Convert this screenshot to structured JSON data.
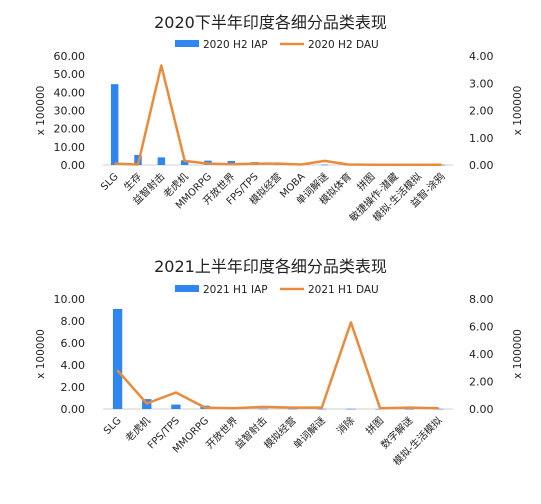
{
  "chart_data": [
    {
      "type": "bar",
      "title": "2020下半年印度各细分品类表现",
      "categories": [
        "SLG",
        "生存",
        "益智射击",
        "老虎机",
        "MMORPG",
        "开放世界",
        "FPS/TPS",
        "模拟经营",
        "MOBA",
        "单词解谜",
        "模拟体育",
        "拼图",
        "敏捷操作-潜藏",
        "模拟-生活模拟",
        "益智-涂鸦"
      ],
      "series": [
        {
          "name": "2020 H2 IAP",
          "kind": "bar",
          "axis": "left",
          "values": [
            44.5,
            5.5,
            4.2,
            2.6,
            2.4,
            2.2,
            1.6,
            1.0,
            0.4,
            0.2,
            0.1,
            0.1,
            0.1,
            0.1,
            0.1
          ]
        },
        {
          "name": "2020 H2 DAU",
          "kind": "line",
          "axis": "right",
          "values": [
            0.05,
            0.02,
            3.65,
            0.15,
            0.05,
            0.03,
            0.05,
            0.05,
            0.02,
            0.15,
            0.02,
            0.01,
            0.01,
            0.01,
            0.01
          ]
        }
      ],
      "ylabel": "x 100000",
      "y2label": "x 100000",
      "ylim": [
        0,
        60
      ],
      "y2lim": [
        0,
        4
      ],
      "yticks": [
        "0.00",
        "10.00",
        "20.00",
        "30.00",
        "40.00",
        "50.00",
        "60.00"
      ],
      "y2ticks": [
        "0.00",
        "1.00",
        "2.00",
        "3.00",
        "4.00"
      ],
      "legend": "top"
    },
    {
      "type": "bar",
      "title": "2021上半年印度各细分品类表现",
      "categories": [
        "SLG",
        "老虎机",
        "FPS/TPS",
        "MMORPG",
        "开放世界",
        "益智射击",
        "模拟经营",
        "单词解谜",
        "消除",
        "拼图",
        "数字解谜",
        "模拟-生活模拟"
      ],
      "series": [
        {
          "name": "2021 H1 IAP",
          "kind": "bar",
          "axis": "left",
          "values": [
            9.1,
            0.9,
            0.4,
            0.3,
            0.05,
            0.03,
            0.02,
            0.02,
            0.02,
            0.01,
            0.01,
            0.01
          ]
        },
        {
          "name": "2021 H1 DAU",
          "kind": "line",
          "axis": "right",
          "values": [
            2.8,
            0.4,
            1.2,
            0.1,
            0.05,
            0.15,
            0.1,
            0.1,
            6.3,
            0.05,
            0.1,
            0.05
          ]
        }
      ],
      "ylabel": "x 100000",
      "y2label": "x 100000",
      "ylim": [
        0,
        10
      ],
      "y2lim": [
        0,
        8
      ],
      "yticks": [
        "0.00",
        "2.00",
        "4.00",
        "6.00",
        "8.00",
        "10.00"
      ],
      "y2ticks": [
        "0.00",
        "2.00",
        "4.00",
        "6.00",
        "8.00"
      ],
      "legend": "top"
    }
  ],
  "colors": {
    "bar": "#2f86f0",
    "line": "#ea8b3c",
    "text": "#222222",
    "axis": "#d0d0d0"
  }
}
